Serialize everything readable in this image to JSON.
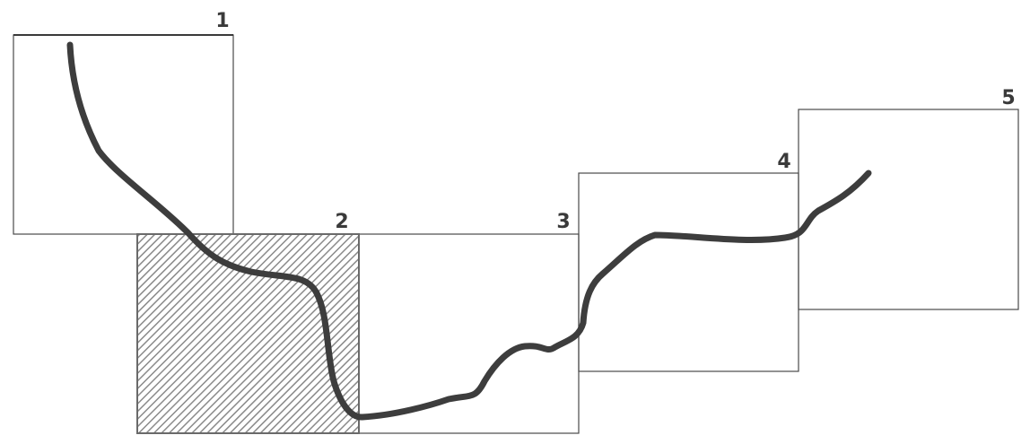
{
  "frames": [
    {
      "label": "1",
      "hatched": false
    },
    {
      "label": "2",
      "hatched": true
    },
    {
      "label": "3",
      "hatched": false
    },
    {
      "label": "4",
      "hatched": false
    },
    {
      "label": "5",
      "hatched": false
    }
  ],
  "colors": {
    "frame_stroke": "#4a4a4a",
    "hatch_fill": "#8a8a8a",
    "track": "#3d3d3d",
    "background": "#ffffff"
  }
}
